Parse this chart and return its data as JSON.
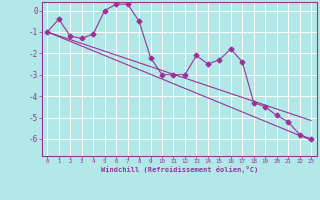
{
  "xlabel": "Windchill (Refroidissement éolien,°C)",
  "ylabel": "",
  "background_color": "#b2e8e8",
  "grid_color": "#c8e8e8",
  "line_color": "#993399",
  "xlim": [
    -0.5,
    23.5
  ],
  "ylim": [
    -6.8,
    0.4
  ],
  "yticks": [
    0,
    -1,
    -2,
    -3,
    -4,
    -5,
    -6
  ],
  "xticks": [
    0,
    1,
    2,
    3,
    4,
    5,
    6,
    7,
    8,
    9,
    10,
    11,
    12,
    13,
    14,
    15,
    16,
    17,
    18,
    19,
    20,
    21,
    22,
    23
  ],
  "x": [
    0,
    1,
    2,
    3,
    4,
    5,
    6,
    7,
    8,
    9,
    10,
    11,
    12,
    13,
    14,
    15,
    16,
    17,
    18,
    19,
    20,
    21,
    22,
    23
  ],
  "y_main": [
    -1.0,
    -0.4,
    -1.2,
    -1.3,
    -1.1,
    0.0,
    0.3,
    0.3,
    -0.5,
    -2.2,
    -3.0,
    -3.0,
    -3.0,
    -2.1,
    -2.5,
    -2.3,
    -1.8,
    -2.4,
    -4.3,
    -4.5,
    -4.9,
    -5.2,
    -5.8,
    -6.0
  ],
  "y_linear1": [
    -1.0,
    -1.18,
    -1.36,
    -1.54,
    -1.72,
    -1.9,
    -2.08,
    -2.26,
    -2.44,
    -2.62,
    -2.8,
    -2.98,
    -3.16,
    -3.34,
    -3.52,
    -3.7,
    -3.88,
    -4.06,
    -4.24,
    -4.42,
    -4.6,
    -4.78,
    -4.96,
    -5.14
  ],
  "y_linear2": [
    -1.0,
    -1.22,
    -1.44,
    -1.66,
    -1.88,
    -2.1,
    -2.32,
    -2.54,
    -2.76,
    -2.98,
    -3.2,
    -3.42,
    -3.64,
    -3.86,
    -4.08,
    -4.3,
    -4.52,
    -4.74,
    -4.96,
    -5.18,
    -5.4,
    -5.62,
    -5.84,
    -6.06
  ],
  "marker": "D",
  "markersize": 2.5,
  "linewidth": 0.8
}
